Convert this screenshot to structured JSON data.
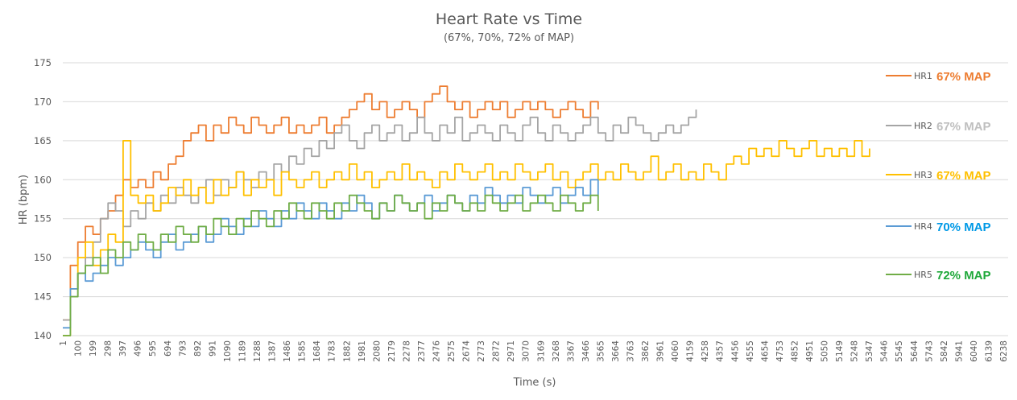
{
  "chart_data": {
    "type": "line",
    "title": "Heart Rate vs Time",
    "subtitle": "(67%, 70%, 72% of MAP)",
    "xlabel": "Time (s)",
    "ylabel": "HR (bpm)",
    "ylim": [
      140,
      175
    ],
    "yticks": [
      140,
      145,
      150,
      155,
      160,
      165,
      170,
      175
    ],
    "xlim": [
      1,
      6300
    ],
    "xticks": [
      1,
      100,
      199,
      298,
      397,
      496,
      595,
      694,
      793,
      892,
      991,
      1090,
      1189,
      1288,
      1387,
      1486,
      1585,
      1684,
      1783,
      1882,
      1981,
      2080,
      2179,
      2278,
      2377,
      2476,
      2575,
      2674,
      2773,
      2872,
      2971,
      3070,
      3169,
      3268,
      3367,
      3466,
      3565,
      3664,
      3763,
      3862,
      3961,
      4060,
      4159,
      4258,
      4357,
      4456,
      4555,
      4654,
      4753,
      4852,
      4951,
      5050,
      5149,
      5248,
      5347,
      5446,
      5545,
      5644,
      5743,
      5842,
      5941,
      6040,
      6139,
      6238
    ],
    "grid": true,
    "legend_position": "right",
    "sample_interval_s": 50,
    "series": [
      {
        "name": "HR1",
        "annotation": "67% MAP",
        "color": "#ED7D31",
        "annotation_color": "#ED7D31",
        "start": 1,
        "values": [
          142,
          149,
          152,
          154,
          153,
          155,
          156,
          158,
          160,
          159,
          160,
          159,
          161,
          160,
          162,
          163,
          165,
          166,
          167,
          165,
          167,
          166,
          168,
          167,
          166,
          168,
          167,
          166,
          167,
          168,
          166,
          167,
          166,
          167,
          168,
          166,
          167,
          168,
          169,
          170,
          171,
          169,
          170,
          168,
          169,
          170,
          169,
          168,
          170,
          171,
          172,
          170,
          169,
          170,
          168,
          169,
          170,
          169,
          170,
          168,
          169,
          170,
          169,
          170,
          169,
          168,
          169,
          170,
          169,
          168,
          170,
          169
        ]
      },
      {
        "name": "HR2",
        "annotation": "67% MAP",
        "color": "#A5A5A5",
        "annotation_color": "#BFBFBF",
        "start": 1,
        "values": [
          142,
          145,
          148,
          150,
          152,
          155,
          157,
          156,
          154,
          156,
          155,
          157,
          156,
          158,
          157,
          159,
          158,
          157,
          159,
          160,
          158,
          160,
          159,
          161,
          160,
          159,
          161,
          160,
          162,
          161,
          163,
          162,
          164,
          163,
          165,
          164,
          166,
          167,
          165,
          164,
          166,
          167,
          165,
          166,
          167,
          165,
          166,
          168,
          166,
          165,
          167,
          166,
          168,
          165,
          166,
          167,
          166,
          165,
          167,
          166,
          165,
          167,
          168,
          166,
          165,
          167,
          166,
          165,
          166,
          167,
          168,
          166,
          165,
          167,
          166,
          168,
          167,
          166,
          165,
          166,
          167,
          166,
          167,
          168,
          169
        ]
      },
      {
        "name": "HR3",
        "annotation": "67% MAP",
        "color": "#FFC000",
        "annotation_color": "#FFC000",
        "start": 1,
        "values": [
          140,
          146,
          150,
          152,
          149,
          151,
          153,
          152,
          165,
          158,
          157,
          158,
          156,
          157,
          159,
          158,
          160,
          158,
          159,
          157,
          160,
          158,
          159,
          161,
          158,
          160,
          159,
          160,
          158,
          161,
          160,
          159,
          160,
          161,
          159,
          160,
          161,
          160,
          162,
          160,
          161,
          159,
          160,
          161,
          160,
          162,
          160,
          161,
          160,
          159,
          161,
          160,
          162,
          161,
          160,
          161,
          162,
          160,
          161,
          160,
          162,
          161,
          160,
          161,
          162,
          160,
          161,
          159,
          160,
          161,
          162,
          160,
          161,
          160,
          162,
          161,
          160,
          161,
          163,
          160,
          161,
          162,
          160,
          161,
          160,
          162,
          161,
          160,
          162,
          163,
          162,
          164,
          163,
          164,
          163,
          165,
          164,
          163,
          164,
          165,
          163,
          164,
          163,
          164,
          163,
          165,
          163,
          164
        ]
      },
      {
        "name": "HR4",
        "annotation": "70% MAP",
        "color": "#5B9BD5",
        "annotation_color": "#0099E6",
        "start": 1,
        "values": [
          141,
          146,
          148,
          147,
          148,
          149,
          150,
          149,
          150,
          151,
          152,
          151,
          150,
          152,
          153,
          151,
          152,
          153,
          154,
          152,
          153,
          155,
          154,
          153,
          155,
          154,
          156,
          155,
          154,
          156,
          155,
          157,
          156,
          155,
          157,
          156,
          155,
          157,
          156,
          158,
          157,
          155,
          157,
          156,
          158,
          157,
          156,
          157,
          158,
          156,
          157,
          158,
          157,
          156,
          158,
          157,
          159,
          158,
          157,
          158,
          157,
          159,
          158,
          157,
          158,
          159,
          157,
          158,
          159,
          158,
          160,
          158
        ]
      },
      {
        "name": "HR5",
        "annotation": "72% MAP",
        "color": "#70AD47",
        "annotation_color": "#1FA83A",
        "start": 1,
        "values": [
          140,
          145,
          148,
          149,
          150,
          148,
          151,
          150,
          152,
          151,
          153,
          152,
          151,
          153,
          152,
          154,
          153,
          152,
          154,
          153,
          155,
          154,
          153,
          155,
          154,
          156,
          155,
          154,
          156,
          155,
          157,
          156,
          155,
          157,
          156,
          155,
          157,
          156,
          158,
          157,
          156,
          155,
          157,
          156,
          158,
          157,
          156,
          157,
          155,
          157,
          156,
          158,
          157,
          156,
          157,
          156,
          158,
          157,
          156,
          157,
          158,
          156,
          157,
          158,
          157,
          156,
          158,
          157,
          156,
          157,
          158,
          156
        ]
      }
    ]
  }
}
